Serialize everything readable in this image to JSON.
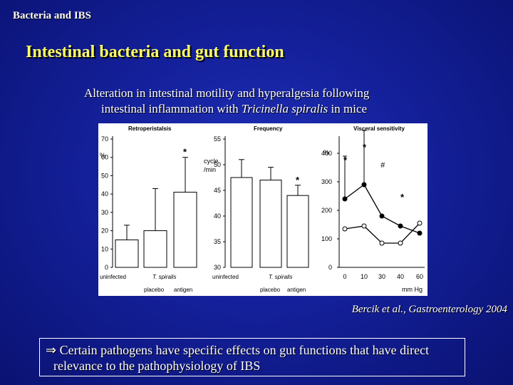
{
  "slide": {
    "section_tag": "Bacteria and IBS",
    "title": "Intestinal bacteria and gut function",
    "subtitle_line1": "Alteration in intestinal motility and hyperalgesia following",
    "subtitle_line2_prefix": "intestinal inflammation with ",
    "subtitle_species": "Tricinella spiralis",
    "subtitle_line2_suffix": " in mice",
    "citation": "Bercik et al., Gastroenterology 2004",
    "conclusion_arrow": "⇒",
    "conclusion_line1": " Certain pathogens have specific effects on gut functions that have direct",
    "conclusion_line2": "relevance to the pathophysiology of IBS"
  },
  "chart_data": [
    {
      "type": "bar",
      "title": "Retroperistalsis",
      "ylabel": "%",
      "ylim": [
        0,
        70
      ],
      "yticks": [
        "0",
        "10",
        "20",
        "30",
        "40",
        "50",
        "60",
        "70"
      ],
      "categories": [
        "uninfected",
        "T. spiralis placebo",
        "T. spiralis antigen"
      ],
      "values": [
        15,
        20,
        41
      ],
      "errors": [
        8,
        23,
        19
      ],
      "significance": [
        "",
        "",
        "*"
      ],
      "x_group_labels": {
        "uninfected": "uninfected",
        "species": "T. spiralis",
        "placebo": "placebo",
        "antigen": "antigen"
      }
    },
    {
      "type": "bar",
      "title": "Frequency",
      "ylabel": "cycle /min",
      "ylim": [
        30,
        55
      ],
      "yticks": [
        "30",
        "35",
        "40",
        "45",
        "50",
        "55"
      ],
      "categories": [
        "uninfected",
        "T. spiralis placebo",
        "T. spiralis antigen"
      ],
      "values": [
        47.5,
        47,
        44
      ],
      "errors": [
        3.5,
        2.5,
        2
      ],
      "significance": [
        "",
        "",
        "*"
      ],
      "x_group_labels": {
        "uninfected": "uninfected",
        "species": "T. spiralis",
        "placebo": "placebo",
        "antigen": "antigen"
      }
    },
    {
      "type": "line",
      "title": "Visceral sensitivity",
      "ylabel": "%",
      "xlabel": "mm Hg",
      "x": [
        0,
        10,
        30,
        40,
        60
      ],
      "ylim": [
        0,
        450
      ],
      "yticks": [
        "0",
        "100",
        "200",
        "300",
        "400"
      ],
      "series": [
        {
          "name": "filled",
          "values": [
            240,
            290,
            180,
            145,
            120
          ],
          "errors": [
            150,
            190,
            0,
            0,
            0
          ]
        },
        {
          "name": "open",
          "values": [
            135,
            145,
            85,
            85,
            155
          ],
          "errors": [
            0,
            0,
            0,
            0,
            0
          ]
        }
      ],
      "annotations": [
        "*",
        "*",
        "#",
        "*"
      ]
    }
  ]
}
